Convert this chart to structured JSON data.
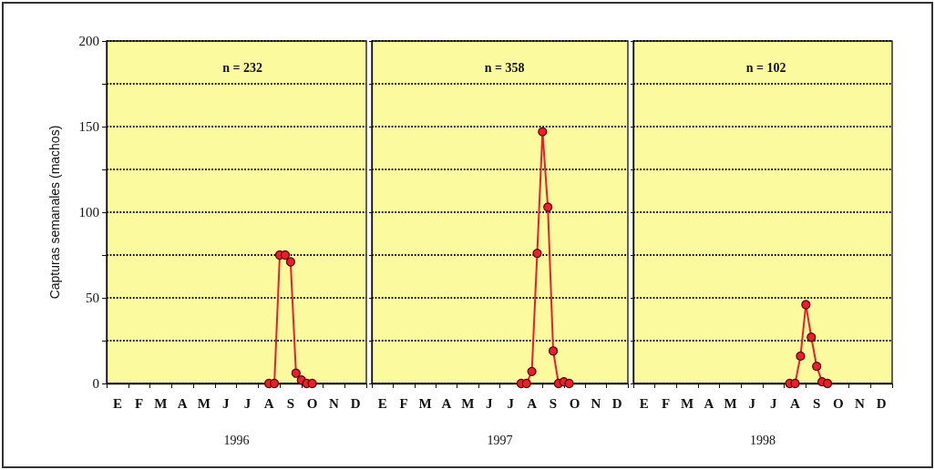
{
  "chart_data": [
    {
      "type": "line",
      "title": "n = 232",
      "xlabel": "1996",
      "ylabel": "Capturas semanales (machos)",
      "categories": [
        null,
        null,
        "E",
        null,
        null,
        null,
        "F",
        null,
        null,
        null,
        "M",
        null,
        null,
        null,
        "A",
        null,
        null,
        null,
        "M",
        null,
        null,
        null,
        "J",
        null,
        null,
        null,
        "J",
        null,
        null,
        null,
        "A",
        null,
        null,
        null,
        "S",
        null,
        null,
        null,
        "O",
        null,
        null,
        null,
        "N",
        null,
        null,
        null,
        "D",
        null,
        null
      ],
      "series": [
        {
          "color": "#e8202a",
          "values": [
            null,
            null,
            null,
            null,
            null,
            null,
            null,
            null,
            null,
            null,
            null,
            null,
            null,
            null,
            null,
            null,
            null,
            null,
            null,
            null,
            null,
            null,
            null,
            null,
            null,
            null,
            null,
            null,
            null,
            null,
            0,
            0,
            75,
            75,
            71,
            6,
            2,
            0,
            0,
            null,
            null,
            null,
            null,
            null,
            null,
            null,
            null,
            null,
            null
          ]
        }
      ],
      "ylim": [
        0,
        200
      ],
      "yticks": [
        0,
        {
          "value": 25,
          "label": null
        },
        50,
        {
          "value": 75,
          "label": null
        },
        100,
        {
          "value": 125,
          "label": null
        },
        150,
        {
          "value": 175,
          "label": null
        },
        200
      ],
      "grid": "y",
      "marker": "circle",
      "line_style": "solid"
    },
    {
      "type": "line",
      "title": "n = 358",
      "xlabel": "1997",
      "categories": [
        null,
        null,
        "E",
        null,
        null,
        null,
        "F",
        null,
        null,
        null,
        "M",
        null,
        null,
        null,
        "A",
        null,
        null,
        null,
        "M",
        null,
        null,
        null,
        "J",
        null,
        null,
        null,
        "J",
        null,
        null,
        null,
        "A",
        null,
        null,
        null,
        "S",
        null,
        null,
        null,
        "O",
        null,
        null,
        null,
        "N",
        null,
        null,
        null,
        "D",
        null,
        null
      ],
      "series": [
        {
          "color": "#e8202a",
          "values": [
            null,
            null,
            null,
            null,
            null,
            null,
            null,
            null,
            null,
            null,
            null,
            null,
            null,
            null,
            null,
            null,
            null,
            null,
            null,
            null,
            null,
            null,
            null,
            null,
            null,
            null,
            null,
            null,
            0,
            0,
            7,
            76,
            147,
            103,
            19,
            0,
            1,
            0,
            null,
            null,
            null,
            null,
            null,
            null,
            null,
            null,
            null,
            null,
            null
          ]
        }
      ],
      "ylim": [
        0,
        200
      ],
      "yticks": [
        0,
        {
          "value": 25,
          "label": null
        },
        50,
        {
          "value": 75,
          "label": null
        },
        100,
        {
          "value": 125,
          "label": null
        },
        150,
        {
          "value": 175,
          "label": null
        },
        200
      ],
      "grid": "y",
      "marker": "circle",
      "line_style": "solid",
      "tick_labels": "x"
    },
    {
      "type": "line",
      "title": "n = 102",
      "xlabel": "1998",
      "categories": [
        null,
        null,
        "E",
        null,
        null,
        null,
        "F",
        null,
        null,
        null,
        "M",
        null,
        null,
        null,
        "A",
        null,
        null,
        null,
        "M",
        null,
        null,
        null,
        "J",
        null,
        null,
        null,
        "J",
        null,
        null,
        null,
        "A",
        null,
        null,
        null,
        "S",
        null,
        null,
        null,
        "O",
        null,
        null,
        null,
        "N",
        null,
        null,
        null,
        "D",
        null,
        null
      ],
      "series": [
        {
          "color": "#e8202a",
          "values": [
            null,
            null,
            null,
            null,
            null,
            null,
            null,
            null,
            null,
            null,
            null,
            null,
            null,
            null,
            null,
            null,
            null,
            null,
            null,
            null,
            null,
            null,
            null,
            null,
            null,
            null,
            null,
            null,
            null,
            0,
            0,
            16,
            46,
            27,
            10,
            1,
            0,
            null,
            null,
            null,
            null,
            null,
            null,
            null,
            null,
            null,
            null,
            null,
            null
          ]
        }
      ],
      "ylim": [
        0,
        200
      ],
      "yticks": [
        0,
        {
          "value": 25,
          "label": null
        },
        50,
        {
          "value": 75,
          "label": null
        },
        100,
        {
          "value": 125,
          "label": null
        },
        150,
        {
          "value": 175,
          "label": null
        },
        200
      ],
      "grid": "y",
      "marker": "circle",
      "line_style": "solid",
      "tick_labels": "x"
    }
  ]
}
